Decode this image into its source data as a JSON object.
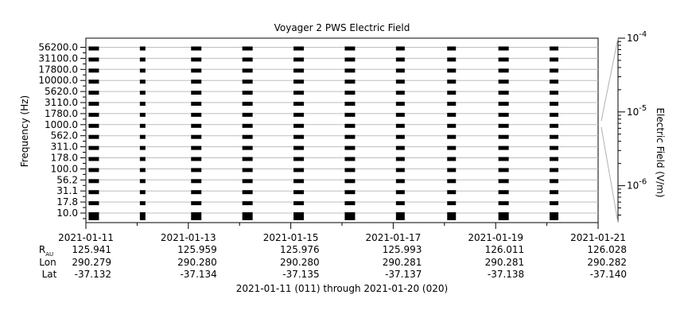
{
  "chart_data": {
    "type": "heatmap",
    "title": "Voyager 2 PWS Electric Field",
    "ylabel": "Frequency (Hz)",
    "colorbar_label": "Electric Field (V/m)",
    "colorbar_ticks": [
      {
        "base": "10",
        "exp": "-4",
        "value": 0.0001
      },
      {
        "base": "10",
        "exp": "-5",
        "value": 1e-05
      },
      {
        "base": "10",
        "exp": "-6",
        "value": 1e-06
      }
    ],
    "frequency_labels": [
      "56200.0",
      "31100.0",
      "17800.0",
      "10000.0",
      "5620.0",
      "3110.0",
      "1780.0",
      "1000.0",
      "562.0",
      "311.0",
      "178.0",
      "100.0",
      "56.2",
      "31.1",
      "17.8",
      "10.0"
    ],
    "x_tick_labels": [
      "2021-01-11",
      "2021-01-13",
      "2021-01-15",
      "2021-01-17",
      "2021-01-19",
      "2021-01-21"
    ],
    "x_range_days": [
      0,
      10
    ],
    "observation_days": [
      0.1,
      1.1,
      2.1,
      3.1,
      4.1,
      5.1,
      6.1,
      7.1,
      8.1,
      9.1
    ],
    "observation_color": "#000000",
    "ephemeris": {
      "row_labels": {
        "r_main": "R",
        "r_sub": "AU",
        "lon": "Lon",
        "lat": "Lat"
      },
      "columns": [
        {
          "r": "125.941",
          "lon": "290.279",
          "lat": "-37.132"
        },
        {
          "r": "125.959",
          "lon": "290.280",
          "lat": "-37.134"
        },
        {
          "r": "125.976",
          "lon": "290.280",
          "lat": "-37.135"
        },
        {
          "r": "125.993",
          "lon": "290.281",
          "lat": "-37.137"
        },
        {
          "r": "126.011",
          "lon": "290.281",
          "lat": "-37.138"
        },
        {
          "r": "126.028",
          "lon": "290.282",
          "lat": "-37.140"
        }
      ]
    },
    "footer": "2021-01-11 (011) through 2021-01-20 (020)"
  }
}
